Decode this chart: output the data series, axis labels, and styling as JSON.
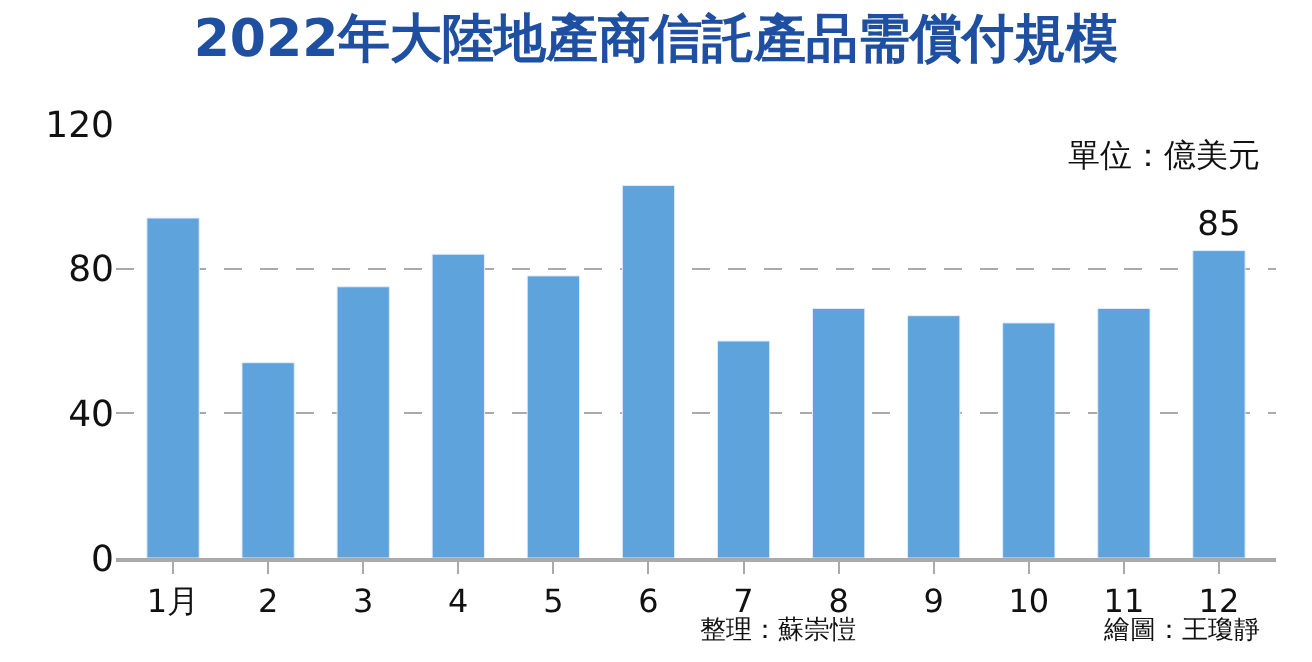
{
  "chart_data": {
    "type": "bar",
    "title": "2022年大陸地產商信託產品需償付規模",
    "categories": [
      "1月",
      "2",
      "3",
      "4",
      "5",
      "6",
      "7",
      "8",
      "9",
      "10",
      "11",
      "12"
    ],
    "values": [
      94,
      54,
      75,
      84,
      78,
      103,
      60,
      69,
      67,
      65,
      69,
      85
    ],
    "value_labels": [
      null,
      null,
      null,
      null,
      null,
      null,
      null,
      null,
      null,
      null,
      null,
      "85"
    ],
    "color": "#5fa3dd",
    "ylim": [
      0,
      120
    ],
    "yticks": [
      0,
      40,
      80,
      120
    ],
    "grid": "y",
    "annotations": [
      "單位：億美元",
      "整理：蘇崇愷",
      "繪圖：王瓊靜"
    ]
  }
}
